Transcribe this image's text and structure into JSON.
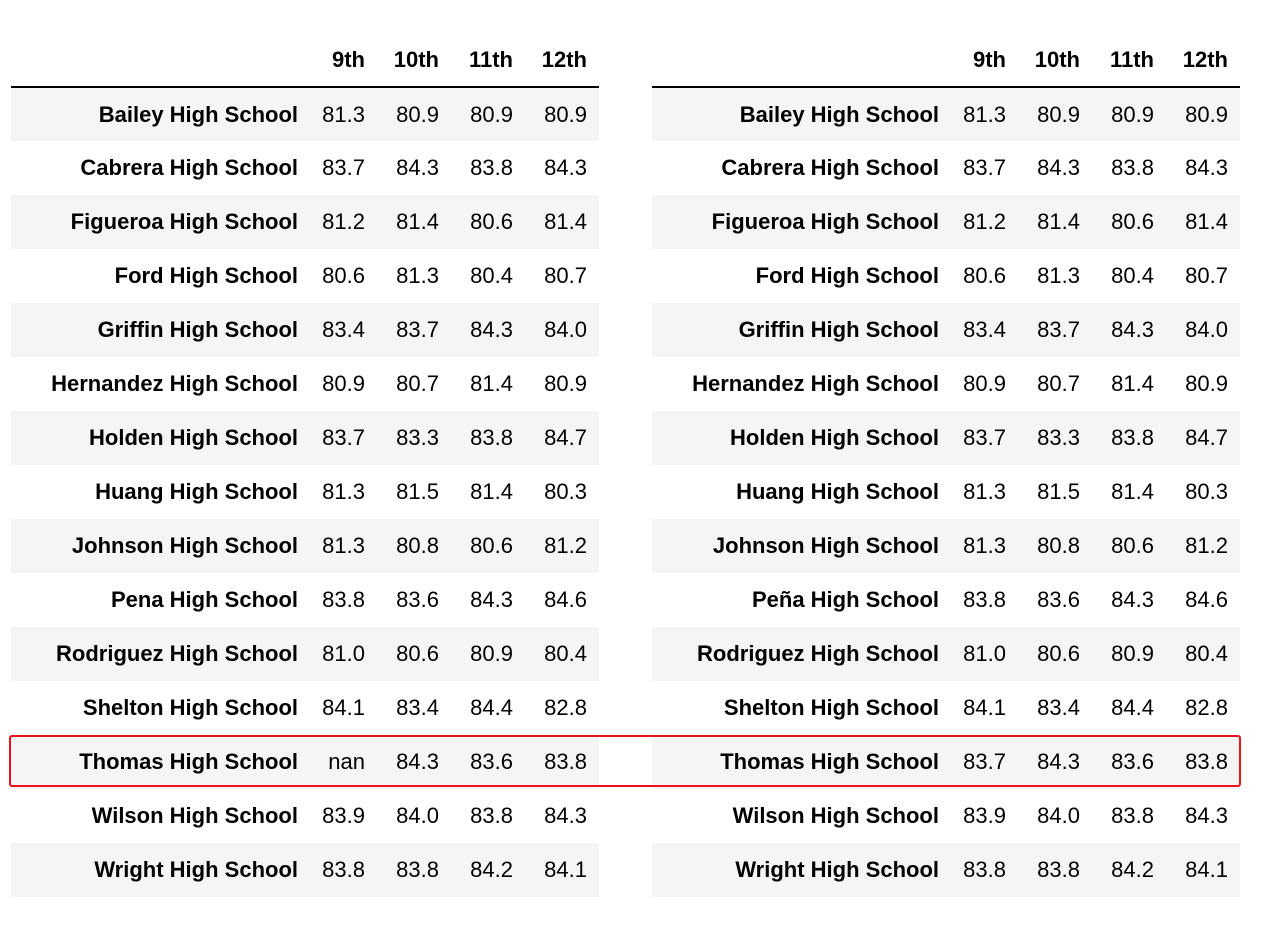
{
  "highlight_color": "#e8131b",
  "tables": [
    {
      "id": "left",
      "columns": [
        "9th",
        "10th",
        "11th",
        "12th"
      ],
      "rows": [
        {
          "school": "Bailey High School",
          "values": [
            "81.3",
            "80.9",
            "80.9",
            "80.9"
          ]
        },
        {
          "school": "Cabrera High School",
          "values": [
            "83.7",
            "84.3",
            "83.8",
            "84.3"
          ]
        },
        {
          "school": "Figueroa High School",
          "values": [
            "81.2",
            "81.4",
            "80.6",
            "81.4"
          ]
        },
        {
          "school": "Ford High School",
          "values": [
            "80.6",
            "81.3",
            "80.4",
            "80.7"
          ]
        },
        {
          "school": "Griffin High School",
          "values": [
            "83.4",
            "83.7",
            "84.3",
            "84.0"
          ]
        },
        {
          "school": "Hernandez High School",
          "values": [
            "80.9",
            "80.7",
            "81.4",
            "80.9"
          ]
        },
        {
          "school": "Holden High School",
          "values": [
            "83.7",
            "83.3",
            "83.8",
            "84.7"
          ]
        },
        {
          "school": "Huang High School",
          "values": [
            "81.3",
            "81.5",
            "81.4",
            "80.3"
          ]
        },
        {
          "school": "Johnson High School",
          "values": [
            "81.3",
            "80.8",
            "80.6",
            "81.2"
          ]
        },
        {
          "school": "Pena High School",
          "values": [
            "83.8",
            "83.6",
            "84.3",
            "84.6"
          ]
        },
        {
          "school": "Rodriguez High School",
          "values": [
            "81.0",
            "80.6",
            "80.9",
            "80.4"
          ]
        },
        {
          "school": "Shelton High School",
          "values": [
            "84.1",
            "83.4",
            "84.4",
            "82.8"
          ]
        },
        {
          "school": "Thomas High School",
          "values": [
            "nan",
            "84.3",
            "83.6",
            "83.8"
          ]
        },
        {
          "school": "Wilson High School",
          "values": [
            "83.9",
            "84.0",
            "83.8",
            "84.3"
          ]
        },
        {
          "school": "Wright High School",
          "values": [
            "83.8",
            "83.8",
            "84.2",
            "84.1"
          ]
        }
      ]
    },
    {
      "id": "right",
      "columns": [
        "9th",
        "10th",
        "11th",
        "12th"
      ],
      "rows": [
        {
          "school": "Bailey High School",
          "values": [
            "81.3",
            "80.9",
            "80.9",
            "80.9"
          ]
        },
        {
          "school": "Cabrera High School",
          "values": [
            "83.7",
            "84.3",
            "83.8",
            "84.3"
          ]
        },
        {
          "school": "Figueroa High School",
          "values": [
            "81.2",
            "81.4",
            "80.6",
            "81.4"
          ]
        },
        {
          "school": "Ford High School",
          "values": [
            "80.6",
            "81.3",
            "80.4",
            "80.7"
          ]
        },
        {
          "school": "Griffin High School",
          "values": [
            "83.4",
            "83.7",
            "84.3",
            "84.0"
          ]
        },
        {
          "school": "Hernandez High School",
          "values": [
            "80.9",
            "80.7",
            "81.4",
            "80.9"
          ]
        },
        {
          "school": "Holden High School",
          "values": [
            "83.7",
            "83.3",
            "83.8",
            "84.7"
          ]
        },
        {
          "school": "Huang High School",
          "values": [
            "81.3",
            "81.5",
            "81.4",
            "80.3"
          ]
        },
        {
          "school": "Johnson High School",
          "values": [
            "81.3",
            "80.8",
            "80.6",
            "81.2"
          ]
        },
        {
          "school": "Peña High School",
          "values": [
            "83.8",
            "83.6",
            "84.3",
            "84.6"
          ]
        },
        {
          "school": "Rodriguez High School",
          "values": [
            "81.0",
            "80.6",
            "80.9",
            "80.4"
          ]
        },
        {
          "school": "Shelton High School",
          "values": [
            "84.1",
            "83.4",
            "84.4",
            "82.8"
          ]
        },
        {
          "school": "Thomas High School",
          "values": [
            "83.7",
            "84.3",
            "83.6",
            "83.8"
          ]
        },
        {
          "school": "Wilson High School",
          "values": [
            "83.9",
            "84.0",
            "83.8",
            "84.3"
          ]
        },
        {
          "school": "Wright High School",
          "values": [
            "83.8",
            "83.8",
            "84.2",
            "84.1"
          ]
        }
      ]
    }
  ]
}
